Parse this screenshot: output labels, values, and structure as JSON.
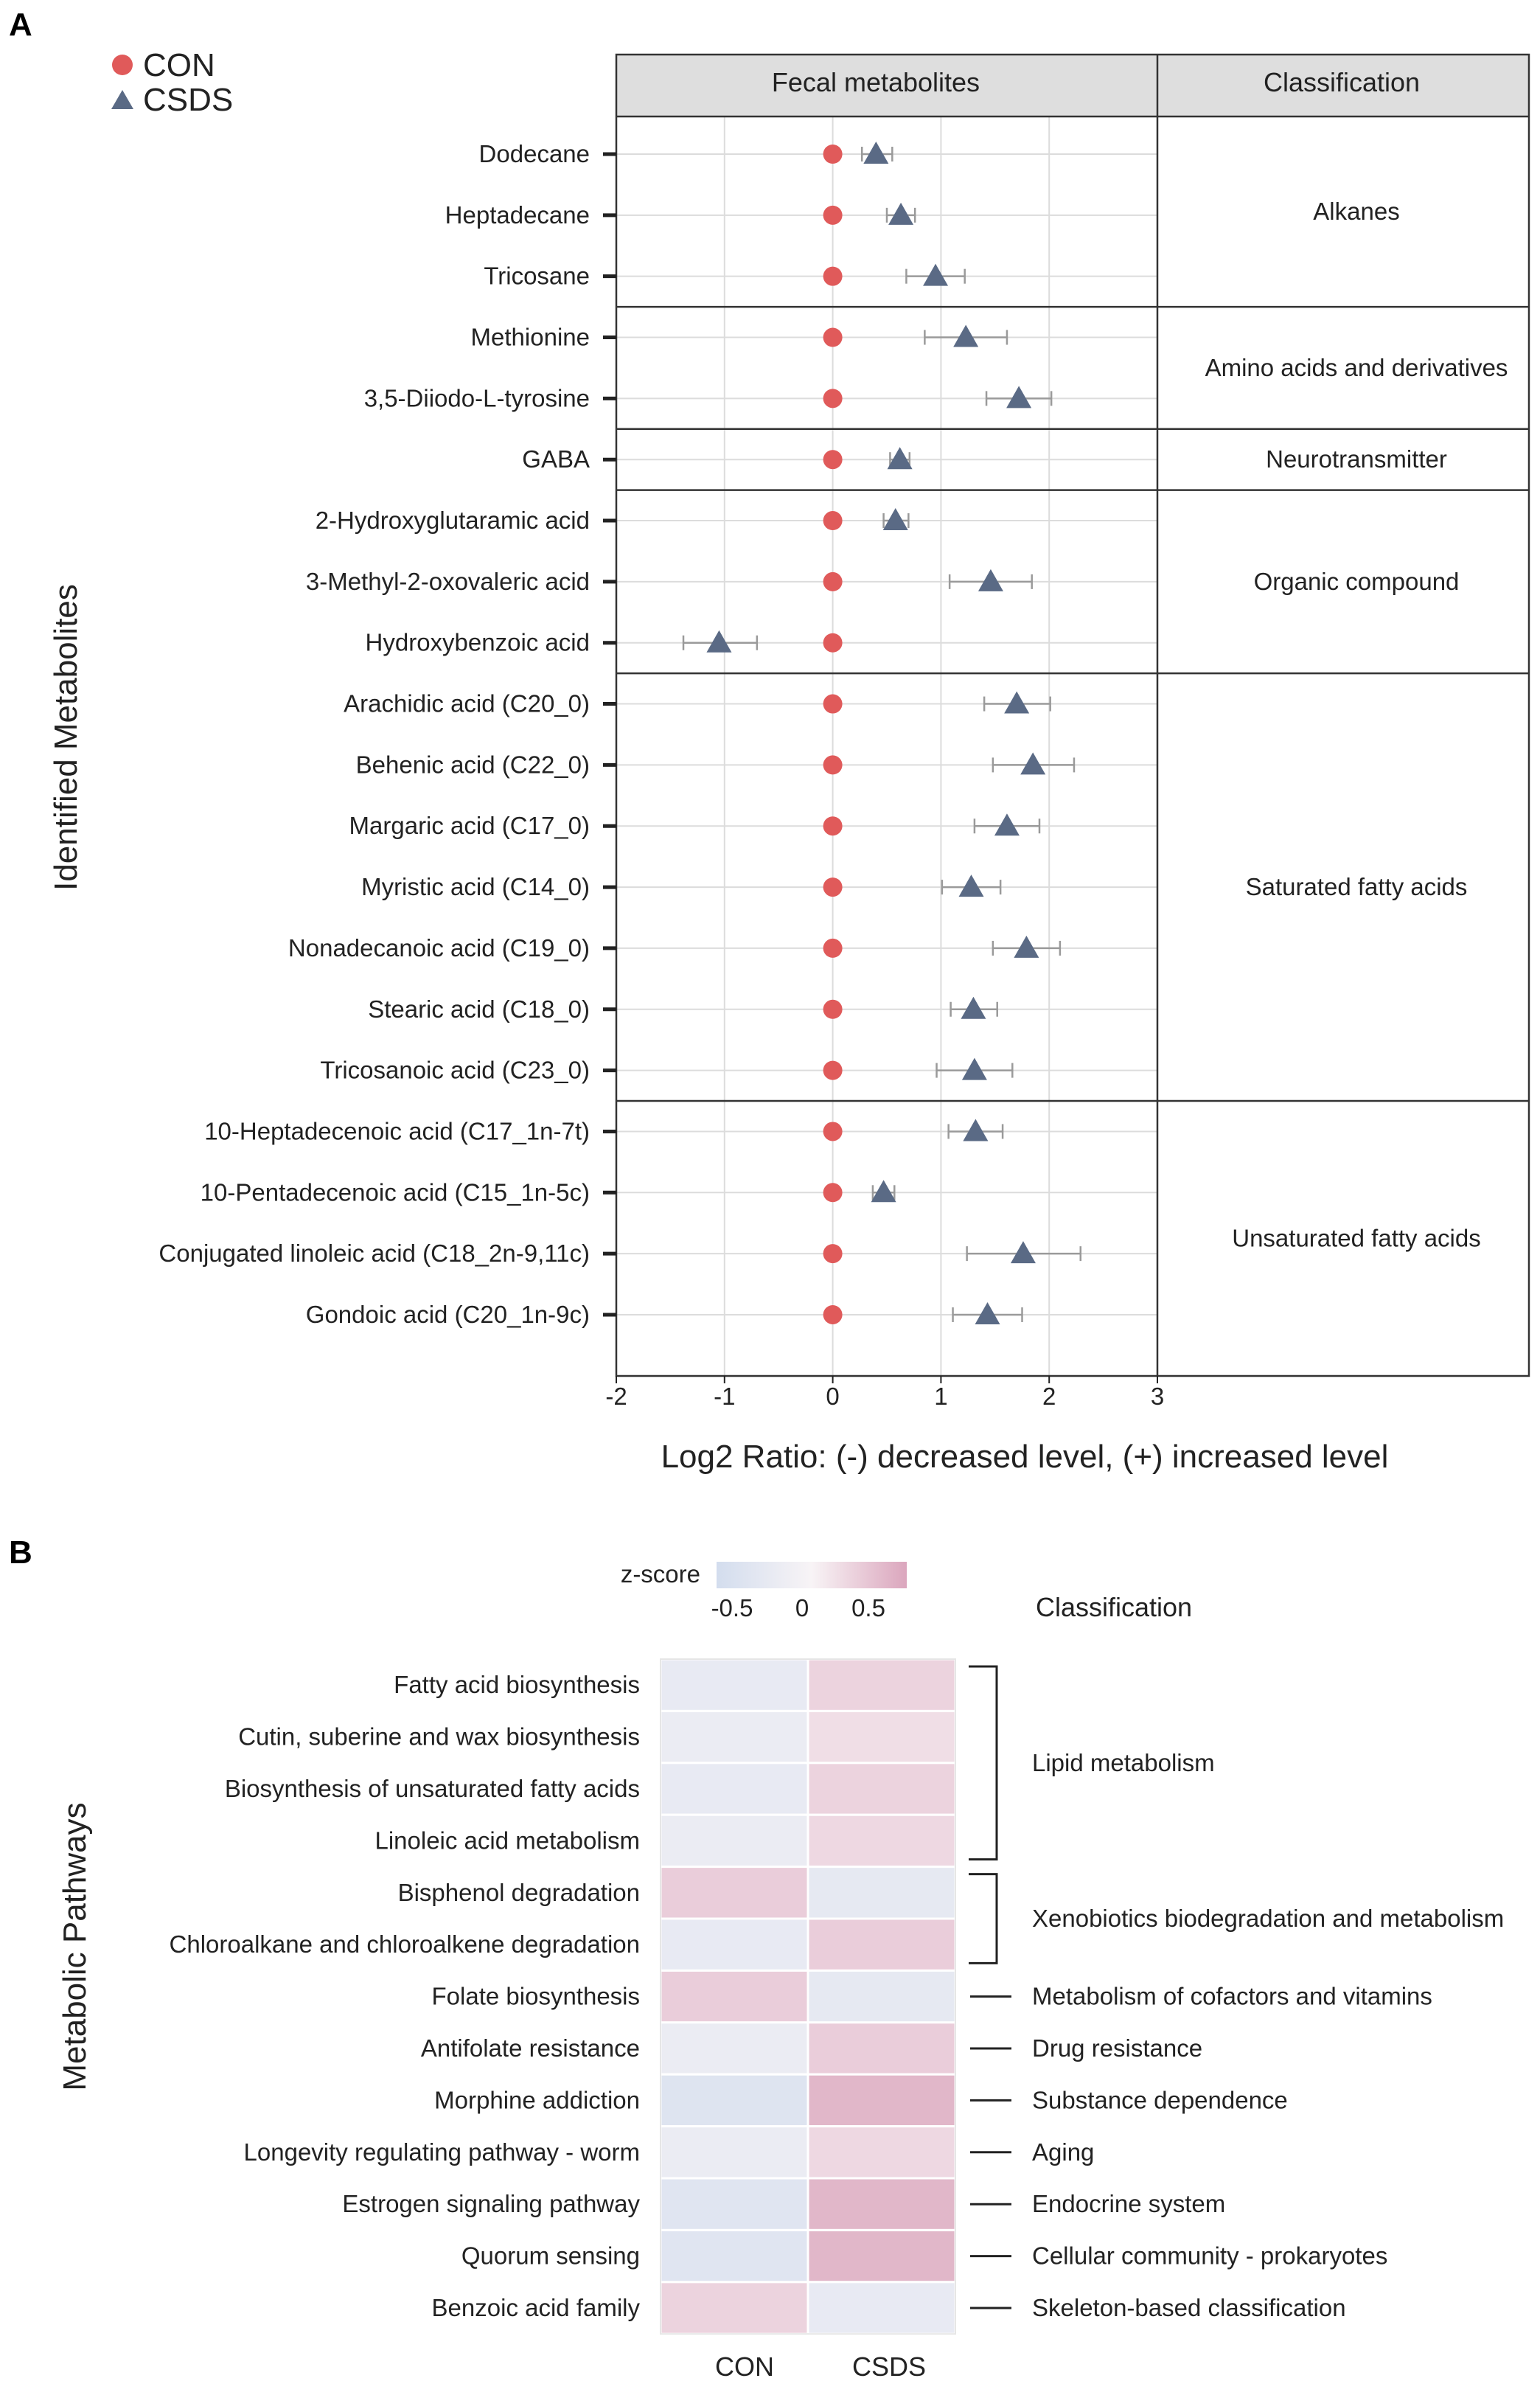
{
  "chart_data": [
    {
      "panel": "A",
      "type": "scatter",
      "title": "",
      "header": {
        "left": "Fecal metabolites",
        "right": "Classification"
      },
      "xlabel": "Log2 Ratio: (-) decreased level, (+) increased level",
      "ylabel": "Identified Metabolites",
      "xlim": [
        -2,
        3
      ],
      "xticks": [
        "-2",
        "-1",
        "0",
        "1",
        "2",
        "3"
      ],
      "grid": true,
      "legend": {
        "position": "top-left",
        "entries": [
          {
            "name": "CON",
            "marker": "circle",
            "color": "#e05a5a"
          },
          {
            "name": "CSDS",
            "marker": "triangle",
            "color": "#5a6a85"
          }
        ]
      },
      "series": [
        {
          "name": "CON",
          "values": [
            0,
            0,
            0,
            0,
            0,
            0,
            0,
            0,
            0,
            0,
            0,
            0,
            0,
            0,
            0,
            0,
            0,
            0,
            0,
            0
          ]
        },
        {
          "name": "CSDS"
        }
      ],
      "metabolites": [
        {
          "name": "Dodecane",
          "csds": 0.4,
          "lo": 0.27,
          "hi": 0.55
        },
        {
          "name": "Heptadecane",
          "csds": 0.63,
          "lo": 0.5,
          "hi": 0.76
        },
        {
          "name": "Tricosane",
          "csds": 0.95,
          "lo": 0.68,
          "hi": 1.22
        },
        {
          "name": "Methionine",
          "csds": 1.23,
          "lo": 0.85,
          "hi": 1.61
        },
        {
          "name": "3,5-Diiodo-L-tyrosine",
          "csds": 1.72,
          "lo": 1.42,
          "hi": 2.02
        },
        {
          "name": "GABA",
          "csds": 0.62,
          "lo": 0.53,
          "hi": 0.71
        },
        {
          "name": "2-Hydroxyglutaramic acid",
          "csds": 0.58,
          "lo": 0.47,
          "hi": 0.7
        },
        {
          "name": "3-Methyl-2-oxovaleric acid",
          "csds": 1.46,
          "lo": 1.08,
          "hi": 1.84
        },
        {
          "name": "Hydroxybenzoic acid",
          "csds": -1.05,
          "lo": -1.38,
          "hi": -0.7
        },
        {
          "name": "Arachidic acid (C20_0)",
          "csds": 1.7,
          "lo": 1.4,
          "hi": 2.01
        },
        {
          "name": "Behenic acid (C22_0)",
          "csds": 1.85,
          "lo": 1.48,
          "hi": 2.23
        },
        {
          "name": "Margaric acid (C17_0)",
          "csds": 1.61,
          "lo": 1.31,
          "hi": 1.91
        },
        {
          "name": "Myristic acid (C14_0)",
          "csds": 1.28,
          "lo": 1.01,
          "hi": 1.55
        },
        {
          "name": "Nonadecanoic acid (C19_0)",
          "csds": 1.79,
          "lo": 1.48,
          "hi": 2.1
        },
        {
          "name": "Stearic acid (C18_0)",
          "csds": 1.3,
          "lo": 1.09,
          "hi": 1.52
        },
        {
          "name": "Tricosanoic acid (C23_0)",
          "csds": 1.31,
          "lo": 0.96,
          "hi": 1.66
        },
        {
          "name": "10-Heptadecenoic acid (C17_1n-7t)",
          "csds": 1.32,
          "lo": 1.07,
          "hi": 1.57
        },
        {
          "name": "10-Pentadecenoic acid (C15_1n-5c)",
          "csds": 0.47,
          "lo": 0.37,
          "hi": 0.57
        },
        {
          "name": "Conjugated linoleic acid (C18_2n-9,11c)",
          "csds": 1.76,
          "lo": 1.24,
          "hi": 2.29
        },
        {
          "name": "Gondoic acid (C20_1n-9c)",
          "csds": 1.43,
          "lo": 1.11,
          "hi": 1.75
        }
      ],
      "classifications": [
        {
          "name": "Alkanes",
          "start": 0,
          "end": 2
        },
        {
          "name": "Amino acids and derivatives",
          "start": 3,
          "end": 4
        },
        {
          "name": "Neurotransmitter",
          "start": 5,
          "end": 5
        },
        {
          "name": "Organic compound",
          "start": 6,
          "end": 8
        },
        {
          "name": "Saturated fatty acids",
          "start": 9,
          "end": 15
        },
        {
          "name": "Unsaturated fatty acids",
          "start": 16,
          "end": 19
        }
      ],
      "colors": {
        "con": "#e05a5a",
        "csds": "#5a6a85",
        "header_bg": "#dedede",
        "grid": "#dcdcdc",
        "errorbar": "#9a9a9a"
      }
    },
    {
      "panel": "B",
      "type": "heatmap",
      "ylabel": "Metabolic Pathways",
      "columns": [
        "CON",
        "CSDS"
      ],
      "colorbar": {
        "title": "z-score",
        "ticks": [
          "-0.5",
          "0",
          "0.5"
        ],
        "range": [
          -0.7,
          0.7
        ],
        "low": "#d3ddee",
        "mid": "#f8f4f6",
        "high": "#dba6bd"
      },
      "classification_header": "Classification",
      "rows": [
        {
          "pathway": "Fatty acid biosynthesis",
          "values": [
            -0.3,
            0.3
          ]
        },
        {
          "pathway": "Cutin, suberine and wax biosynthesis",
          "values": [
            -0.25,
            0.2
          ]
        },
        {
          "pathway": "Biosynthesis of unsaturated fatty acids",
          "values": [
            -0.3,
            0.3
          ]
        },
        {
          "pathway": "Linoleic acid metabolism",
          "values": [
            -0.25,
            0.25
          ]
        },
        {
          "pathway": "Bisphenol degradation",
          "values": [
            0.35,
            -0.35
          ]
        },
        {
          "pathway": "Chloroalkane and chloroalkene degradation",
          "values": [
            -0.3,
            0.35
          ]
        },
        {
          "pathway": "Folate biosynthesis",
          "values": [
            0.35,
            -0.35
          ]
        },
        {
          "pathway": "Antifolate resistance",
          "values": [
            -0.25,
            0.35
          ]
        },
        {
          "pathway": "Morphine addiction",
          "values": [
            -0.5,
            0.55
          ]
        },
        {
          "pathway": "Longevity regulating pathway - worm",
          "values": [
            -0.25,
            0.25
          ]
        },
        {
          "pathway": "Estrogen signaling pathway",
          "values": [
            -0.45,
            0.55
          ]
        },
        {
          "pathway": "Quorum sensing",
          "values": [
            -0.45,
            0.55
          ]
        },
        {
          "pathway": "Benzoic acid family",
          "values": [
            0.3,
            -0.3
          ]
        }
      ],
      "classifications": [
        {
          "name": "Lipid metabolism",
          "start": 0,
          "end": 3,
          "style": "bracket"
        },
        {
          "name": "Xenobiotics biodegradation and metabolism",
          "start": 4,
          "end": 5,
          "style": "bracket"
        },
        {
          "name": "Metabolism of cofactors and vitamins",
          "start": 6,
          "end": 6,
          "style": "line"
        },
        {
          "name": "Drug resistance",
          "start": 7,
          "end": 7,
          "style": "line"
        },
        {
          "name": "Substance dependence",
          "start": 8,
          "end": 8,
          "style": "line"
        },
        {
          "name": "Aging",
          "start": 9,
          "end": 9,
          "style": "line"
        },
        {
          "name": "Endocrine system",
          "start": 10,
          "end": 10,
          "style": "line"
        },
        {
          "name": "Cellular community - prokaryotes",
          "start": 11,
          "end": 11,
          "style": "line"
        },
        {
          "name": "Skeleton-based classification",
          "start": 12,
          "end": 12,
          "style": "line"
        }
      ]
    }
  ]
}
